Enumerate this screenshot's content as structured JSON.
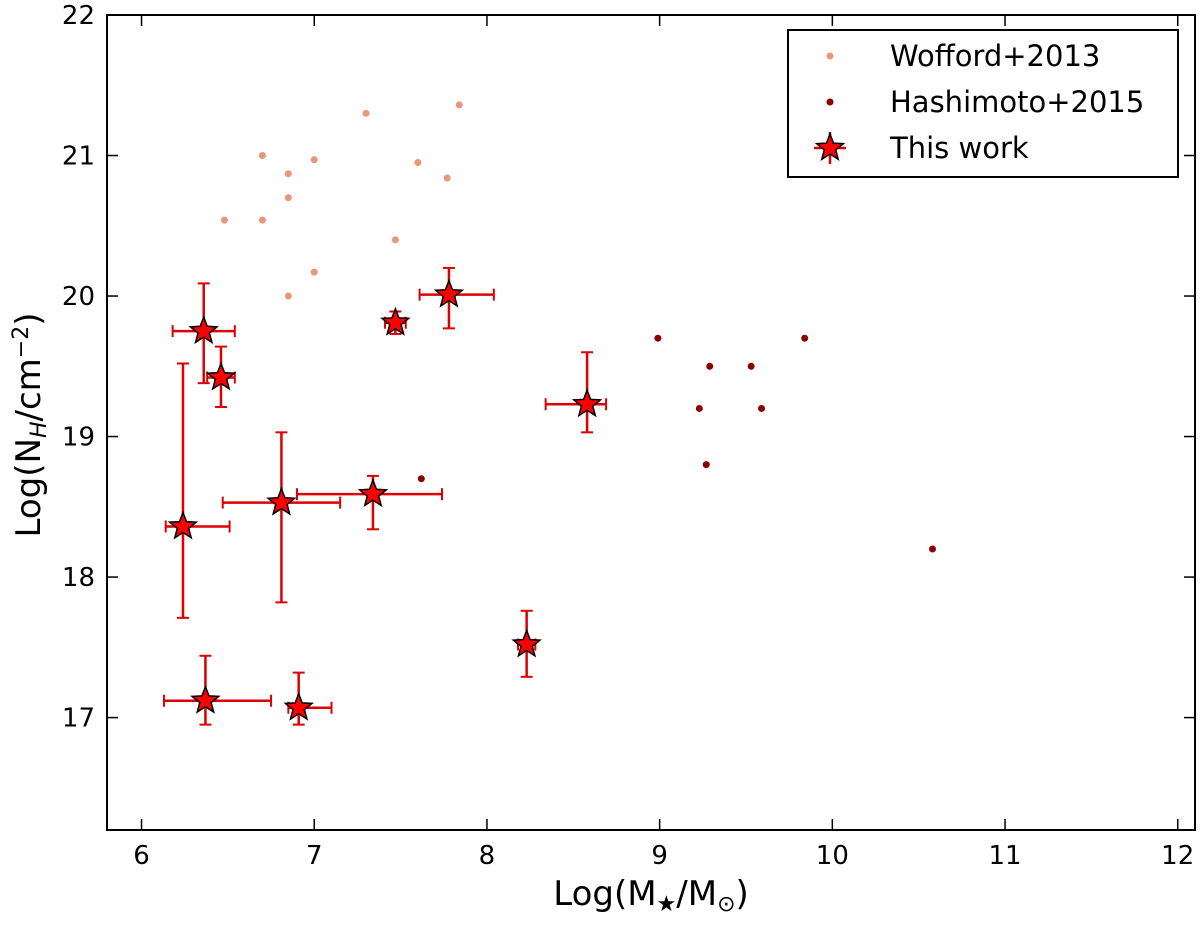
{
  "chart_data": {
    "type": "scatter",
    "xlabel": "Log(M★/M⊙)",
    "ylabel": "Log(N_H/cm⁻²)",
    "xlim": [
      5.8,
      12.1
    ],
    "ylim": [
      16.2,
      22.0
    ],
    "xticks": [
      "6",
      "7",
      "8",
      "9",
      "10",
      "11",
      "12"
    ],
    "yticks": [
      "17",
      "18",
      "19",
      "20",
      "21",
      "22"
    ],
    "grid": false,
    "legend_position": "top-right",
    "series": [
      {
        "name": "Wofford+2013",
        "marker": "dot",
        "color": "#e9967a",
        "points": [
          {
            "x": 6.48,
            "y": 20.54
          },
          {
            "x": 6.7,
            "y": 20.54
          },
          {
            "x": 6.7,
            "y": 21.0
          },
          {
            "x": 6.85,
            "y": 20.87
          },
          {
            "x": 6.85,
            "y": 20.7
          },
          {
            "x": 6.85,
            "y": 20.0
          },
          {
            "x": 7.0,
            "y": 20.97
          },
          {
            "x": 7.0,
            "y": 20.17
          },
          {
            "x": 7.3,
            "y": 21.3
          },
          {
            "x": 7.47,
            "y": 20.4
          },
          {
            "x": 7.6,
            "y": 20.95
          },
          {
            "x": 7.77,
            "y": 20.84
          },
          {
            "x": 7.84,
            "y": 21.36
          }
        ]
      },
      {
        "name": "Hashimoto+2015",
        "marker": "dot",
        "color": "#8b0000",
        "points": [
          {
            "x": 7.62,
            "y": 18.7
          },
          {
            "x": 8.99,
            "y": 19.7
          },
          {
            "x": 9.23,
            "y": 19.2
          },
          {
            "x": 9.27,
            "y": 18.8
          },
          {
            "x": 9.29,
            "y": 19.5
          },
          {
            "x": 9.53,
            "y": 19.5
          },
          {
            "x": 9.59,
            "y": 19.2
          },
          {
            "x": 9.84,
            "y": 19.7
          },
          {
            "x": 10.58,
            "y": 18.2
          }
        ]
      },
      {
        "name": "This work",
        "marker": "star",
        "color": "#ff0000",
        "errorbar_color": "#dd0000",
        "points": [
          {
            "x": 6.36,
            "y": 19.75,
            "xerr": [
              0.18,
              0.18
            ],
            "yerr": [
              0.37,
              0.34
            ]
          },
          {
            "x": 6.46,
            "y": 19.42,
            "xerr": [
              0.08,
              0.08
            ],
            "yerr": [
              0.21,
              0.22
            ]
          },
          {
            "x": 6.24,
            "y": 18.36,
            "xerr": [
              0.1,
              0.27
            ],
            "yerr": [
              0.65,
              1.16
            ]
          },
          {
            "x": 6.81,
            "y": 18.53,
            "xerr": [
              0.34,
              0.34
            ],
            "yerr": [
              0.71,
              0.5
            ]
          },
          {
            "x": 7.34,
            "y": 18.59,
            "xerr": [
              0.44,
              0.4
            ],
            "yerr": [
              0.25,
              0.13
            ]
          },
          {
            "x": 7.47,
            "y": 19.81,
            "xerr": [
              0.06,
              0.06
            ],
            "yerr": [
              0.08,
              0.08
            ]
          },
          {
            "x": 7.78,
            "y": 20.01,
            "xerr": [
              0.17,
              0.26
            ],
            "yerr": [
              0.24,
              0.19
            ]
          },
          {
            "x": 8.58,
            "y": 19.23,
            "xerr": [
              0.24,
              0.11
            ],
            "yerr": [
              0.2,
              0.37
            ]
          },
          {
            "x": 8.23,
            "y": 17.52,
            "xerr": [
              0.05,
              0.05
            ],
            "yerr": [
              0.23,
              0.24
            ]
          },
          {
            "x": 6.37,
            "y": 17.12,
            "xerr": [
              0.24,
              0.38
            ],
            "yerr": [
              0.17,
              0.32
            ]
          },
          {
            "x": 6.91,
            "y": 17.07,
            "xerr": [
              0.06,
              0.19
            ],
            "yerr": [
              0.12,
              0.25
            ]
          }
        ]
      }
    ]
  }
}
